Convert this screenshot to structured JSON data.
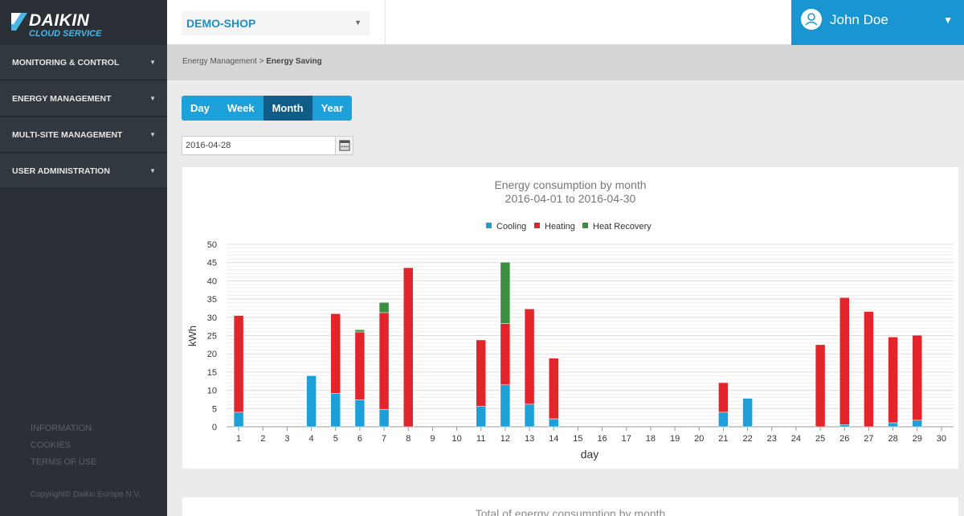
{
  "brand": {
    "name": "DAIKIN",
    "tagline": "CLOUD SERVICE"
  },
  "nav": [
    {
      "label": "MONITORING & CONTROL"
    },
    {
      "label": "ENERGY MANAGEMENT"
    },
    {
      "label": "MULTI-SITE MANAGEMENT"
    },
    {
      "label": "USER ADMINISTRATION"
    }
  ],
  "footer": {
    "links": [
      "INFORMATION",
      "COOKIES",
      "TERMS OF USE"
    ],
    "copyright": "Copyright© Daikin Europe N.V."
  },
  "header": {
    "shop": "DEMO-SHOP",
    "user": "John Doe"
  },
  "breadcrumb": {
    "parent": "Energy Management",
    "separator": ">",
    "current": "Energy Saving"
  },
  "period_tabs": [
    {
      "label": "Day",
      "active": false
    },
    {
      "label": "Week",
      "active": false
    },
    {
      "label": "Month",
      "active": true
    },
    {
      "label": "Year",
      "active": false
    }
  ],
  "date_value": "2016-04-28",
  "colors": {
    "cooling": "#1e9fd8",
    "heating": "#e3242b",
    "heat_recovery": "#3a8f3f",
    "accent": "#1996d1"
  },
  "icons": {
    "calendar": "calendar-icon",
    "user": "user-icon",
    "dropdown": "chevron-down-icon"
  },
  "second_chart_title": "Total of energy consumption by month",
  "chart_data": {
    "type": "bar",
    "stacked": true,
    "title": "Energy consumption by month",
    "subtitle": "2016-04-01 to 2016-04-30",
    "xlabel": "day",
    "ylabel": "kWh",
    "ylim": [
      0,
      50
    ],
    "yticks": [
      0,
      5,
      10,
      15,
      20,
      25,
      30,
      35,
      40,
      45,
      50
    ],
    "legend_position": "top-center",
    "grid": true,
    "categories": [
      "1",
      "2",
      "3",
      "4",
      "5",
      "6",
      "7",
      "8",
      "9",
      "10",
      "11",
      "12",
      "13",
      "14",
      "15",
      "16",
      "17",
      "18",
      "19",
      "20",
      "21",
      "22",
      "23",
      "24",
      "25",
      "26",
      "27",
      "28",
      "29",
      "30"
    ],
    "series": [
      {
        "name": "Cooling",
        "color": "#1e9fd8",
        "values": [
          4,
          0,
          0,
          14,
          9.2,
          7.4,
          4.8,
          0,
          0,
          0,
          5.6,
          11.5,
          6.2,
          2.2,
          0,
          0,
          0,
          0,
          0,
          0,
          4,
          7.8,
          0,
          0,
          0,
          0.6,
          0,
          1.1,
          1.8,
          0
        ]
      },
      {
        "name": "Heating",
        "color": "#e3242b",
        "values": [
          26.5,
          0,
          0,
          0,
          21.8,
          18.6,
          26.5,
          43.6,
          0,
          0,
          18.2,
          16.8,
          26.1,
          16.6,
          0,
          0,
          0,
          0,
          0,
          0,
          8.1,
          0,
          0,
          0,
          22.5,
          34.8,
          31.6,
          23.5,
          23.3,
          0
        ]
      },
      {
        "name": "Heat Recovery",
        "color": "#3a8f3f",
        "values": [
          0,
          0,
          0,
          0,
          0,
          0.6,
          2.8,
          0,
          0,
          0,
          0,
          16.8,
          0,
          0,
          0,
          0,
          0,
          0,
          0,
          0,
          0,
          0,
          0,
          0,
          0,
          0,
          0,
          0,
          0,
          0
        ]
      }
    ]
  }
}
